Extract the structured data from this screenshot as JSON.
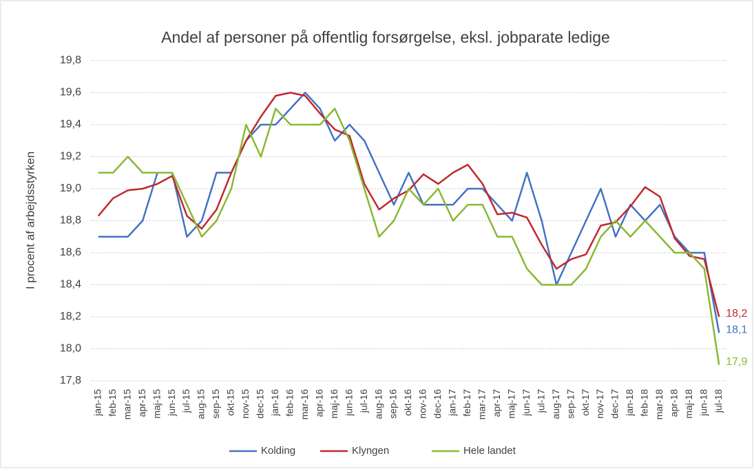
{
  "chart_data": {
    "type": "line",
    "title": "Andel af personer på offentlig forsørgelse, eksl. jobparate ledige",
    "y_label": "I procent af arbejdsstyrken",
    "categories": [
      "jan-15",
      "feb-15",
      "mar-15",
      "apr-15",
      "maj-15",
      "jun-15",
      "jul-15",
      "aug-15",
      "sep-15",
      "okt-15",
      "nov-15",
      "dec-15",
      "jan-16",
      "feb-16",
      "mar-16",
      "apr-16",
      "maj-16",
      "jun-16",
      "jul-16",
      "aug-16",
      "sep-16",
      "okt-16",
      "nov-16",
      "dec-16",
      "jan-17",
      "feb-17",
      "mar-17",
      "apr-17",
      "maj-17",
      "jun-17",
      "jul-17",
      "aug-17",
      "sep-17",
      "okt-17",
      "nov-17",
      "dec-17",
      "jan-18",
      "feb-18",
      "mar-18",
      "apr-18",
      "maj-18",
      "jun-18",
      "jul-18"
    ],
    "series": [
      {
        "name": "Kolding",
        "color": "#4472c4",
        "values": [
          18.7,
          18.7,
          18.7,
          18.8,
          19.1,
          19.1,
          18.7,
          18.8,
          19.1,
          19.1,
          19.3,
          19.4,
          19.4,
          19.5,
          19.6,
          19.5,
          19.3,
          19.4,
          19.3,
          19.1,
          18.9,
          19.1,
          18.9,
          18.9,
          18.9,
          19.0,
          19.0,
          18.9,
          18.8,
          19.1,
          18.8,
          18.4,
          18.6,
          18.8,
          19.0,
          18.7,
          18.9,
          18.8,
          18.9,
          18.7,
          18.6,
          18.6,
          18.1
        ],
        "value_labels": [
          null,
          null,
          null,
          null,
          null,
          null,
          null,
          null,
          null,
          null,
          null,
          null,
          null,
          null,
          null,
          null,
          null,
          null,
          null,
          null,
          null,
          null,
          null,
          null,
          null,
          null,
          null,
          null,
          null,
          null,
          null,
          null,
          null,
          null,
          null,
          null,
          null,
          null,
          null,
          null,
          null,
          null,
          "18,1"
        ]
      },
      {
        "name": "Klyngen",
        "color": "#c0282d",
        "values": [
          18.83,
          18.94,
          18.99,
          19.0,
          19.03,
          19.08,
          18.83,
          18.75,
          18.87,
          19.1,
          19.3,
          19.45,
          19.58,
          19.6,
          19.58,
          19.47,
          19.37,
          19.33,
          19.03,
          18.87,
          18.94,
          18.99,
          19.09,
          19.03,
          19.1,
          19.15,
          19.03,
          18.84,
          18.85,
          18.82,
          18.65,
          18.5,
          18.56,
          18.59,
          18.77,
          18.79,
          18.89,
          19.01,
          18.95,
          18.69,
          18.58,
          18.56,
          18.2
        ],
        "value_labels": [
          null,
          null,
          null,
          null,
          null,
          null,
          null,
          null,
          null,
          null,
          null,
          null,
          null,
          null,
          null,
          null,
          null,
          null,
          null,
          null,
          null,
          null,
          null,
          null,
          null,
          null,
          null,
          null,
          null,
          null,
          null,
          null,
          null,
          null,
          null,
          null,
          null,
          null,
          null,
          null,
          null,
          null,
          "18,2"
        ]
      },
      {
        "name": "Hele landet",
        "color": "#8ab833",
        "values": [
          19.1,
          19.1,
          19.2,
          19.1,
          19.1,
          19.1,
          18.9,
          18.7,
          18.8,
          19.0,
          19.4,
          19.2,
          19.5,
          19.4,
          19.4,
          19.4,
          19.5,
          19.3,
          19.0,
          18.7,
          18.8,
          19.0,
          18.9,
          19.0,
          18.8,
          18.9,
          18.9,
          18.7,
          18.7,
          18.5,
          18.4,
          18.4,
          18.4,
          18.5,
          18.7,
          18.8,
          18.7,
          18.8,
          18.7,
          18.6,
          18.6,
          18.5,
          17.9
        ],
        "value_labels": [
          null,
          null,
          null,
          null,
          null,
          null,
          null,
          null,
          null,
          null,
          null,
          null,
          null,
          null,
          null,
          null,
          null,
          null,
          null,
          null,
          null,
          null,
          null,
          null,
          null,
          null,
          null,
          null,
          null,
          null,
          null,
          null,
          null,
          null,
          null,
          null,
          null,
          null,
          null,
          null,
          null,
          null,
          "17,9"
        ]
      }
    ],
    "ylim": [
      17.8,
      19.8
    ],
    "yticks": [
      {
        "value": 17.8,
        "label": "17,8"
      },
      {
        "value": 18.0,
        "label": "18,0"
      },
      {
        "value": 18.2,
        "label": "18,2"
      },
      {
        "value": 18.4,
        "label": "18,4"
      },
      {
        "value": 18.6,
        "label": "18,6"
      },
      {
        "value": 18.8,
        "label": "18,8"
      },
      {
        "value": 19.0,
        "label": "19,0"
      },
      {
        "value": 19.2,
        "label": "19,2"
      },
      {
        "value": 19.4,
        "label": "19,4"
      },
      {
        "value": 19.6,
        "label": "19,6"
      },
      {
        "value": 19.8,
        "label": "19,8"
      }
    ],
    "grid": true,
    "legend": "bottom"
  }
}
